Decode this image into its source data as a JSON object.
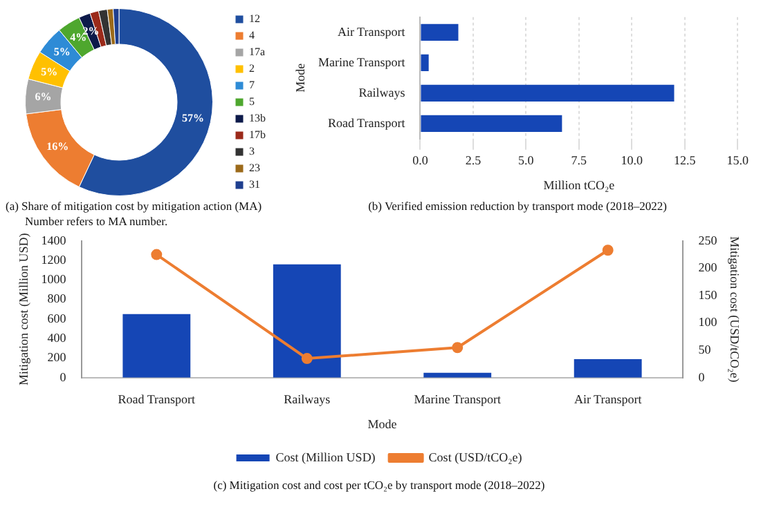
{
  "chart_data": [
    {
      "type": "donut",
      "title": "(a) Share of mitigation cost by mitigation action (MA)",
      "subtitle": "Number refers to MA number.",
      "categories": [
        "12",
        "4",
        "17a",
        "2",
        "7",
        "5",
        "13b",
        "17b",
        "3",
        "23",
        "31"
      ],
      "values": [
        57,
        16,
        6,
        5,
        5,
        4,
        2,
        1.5,
        1.5,
        1,
        1
      ],
      "value_labels": [
        "57%",
        "16%",
        "6%",
        "5%",
        "5%",
        "4%",
        "2%",
        null,
        null,
        null,
        null
      ],
      "colors": [
        "#1f4e9f",
        "#ed7d31",
        "#a5a5a5",
        "#ffc000",
        "#2e8bd6",
        "#4ea72e",
        "#0d1a4a",
        "#9b2a1a",
        "#333333",
        "#9c6a1a",
        "#1f3f8f"
      ],
      "legend": "right"
    },
    {
      "type": "bar",
      "orientation": "horizontal",
      "title": "(b) Verified emission reduction by transport mode (2018–2022)",
      "xlabel": "Million tCO₂e",
      "ylabel": "Mode",
      "categories": [
        "Air Transport",
        "Marine Transport",
        "Railways",
        "Road Transport"
      ],
      "values": [
        1.8,
        0.4,
        12.0,
        6.7
      ],
      "color": "#1546b5",
      "xlim": [
        0,
        15
      ],
      "xticks": [
        {
          "value": 0,
          "label": "0.0"
        },
        {
          "value": 2.5,
          "label": "2.5"
        },
        {
          "value": 5,
          "label": "5.0"
        },
        {
          "value": 7.5,
          "label": "7.5"
        },
        {
          "value": 10,
          "label": "10.0"
        },
        {
          "value": 12.5,
          "label": "12.5"
        },
        {
          "value": 15,
          "label": "15.0"
        }
      ],
      "grid": "x"
    },
    {
      "type": "bar",
      "title": "(c) Mitigation cost and cost per tCO₂e by transport mode (2018–2022)",
      "xlabel": "Mode",
      "ylabel": "Mitigation cost (Million USD)",
      "y2label": "Mitigation cost (USD/tCO₂e)",
      "categories": [
        "Road Transport",
        "Railways",
        "Marine Transport",
        "Air Transport"
      ],
      "series": [
        {
          "name": "Cost (Million USD)",
          "type": "bar",
          "color": "#1546b5",
          "values": [
            650,
            1160,
            50,
            190
          ]
        },
        {
          "name": "Cost (USD/tCO₂e)",
          "type": "line",
          "axis": "y2",
          "color": "#ed7d31",
          "values": [
            225,
            35,
            55,
            233
          ]
        }
      ],
      "ylim": [
        0,
        1400
      ],
      "yticks": [
        0,
        200,
        400,
        600,
        800,
        1000,
        1200,
        1400
      ],
      "y2lim": [
        0,
        250
      ],
      "y2ticks": [
        0,
        50,
        100,
        150,
        200,
        250
      ],
      "marker": "circle",
      "legend": "bottom"
    }
  ]
}
